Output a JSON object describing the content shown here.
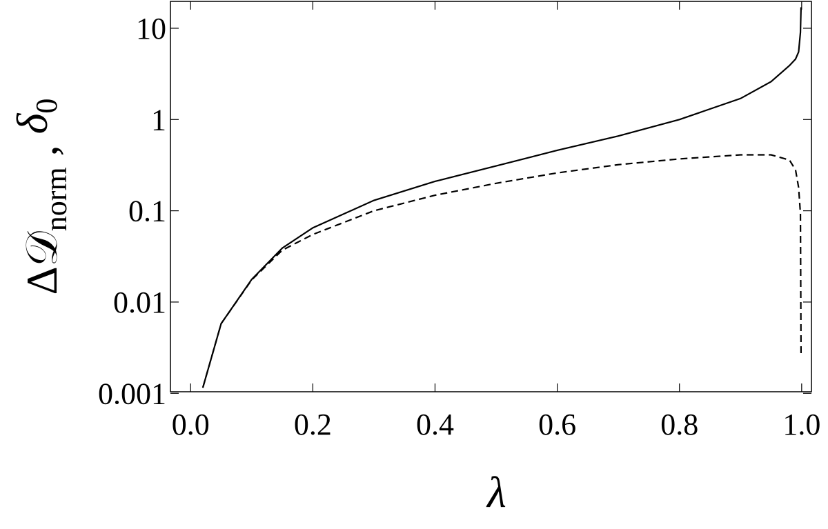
{
  "chart_data": {
    "type": "line",
    "x_label": "λ",
    "y_label": [
      "Δ𝒟",
      "norm",
      " , ",
      "δ",
      "0"
    ],
    "x": [
      0.02,
      0.05,
      0.1,
      0.15,
      0.2,
      0.3,
      0.4,
      0.5,
      0.6,
      0.7,
      0.8,
      0.9,
      0.95,
      0.98,
      0.99,
      0.995,
      0.998,
      0.999
    ],
    "series": [
      {
        "color": "#000000",
        "line_style": "solid",
        "values": [
          0.00115,
          0.0058,
          0.0177,
          0.039,
          0.065,
          0.13,
          0.21,
          0.31,
          0.46,
          0.66,
          1.0,
          1.7,
          2.6,
          3.9,
          4.6,
          5.5,
          9,
          17
        ]
      },
      {
        "color": "#000000",
        "line_style": "dashed",
        "values": [
          0.00115,
          0.0058,
          0.0175,
          0.037,
          0.055,
          0.1,
          0.148,
          0.2,
          0.26,
          0.32,
          0.37,
          0.41,
          0.41,
          0.36,
          0.28,
          0.18,
          0.093,
          0.0025
        ]
      }
    ],
    "xlim": [
      -0.033,
      1.016
    ],
    "xticks": [
      {
        "value": 0,
        "label": "0.0"
      },
      0.2,
      0.4,
      0.6,
      0.8,
      {
        "value": 1,
        "label": "1.0"
      }
    ],
    "ylim": [
      0.00104,
      19.7
    ],
    "yticks": [
      0.001,
      0.01,
      0.1,
      1,
      10
    ],
    "y_log": true,
    "grid": false
  }
}
